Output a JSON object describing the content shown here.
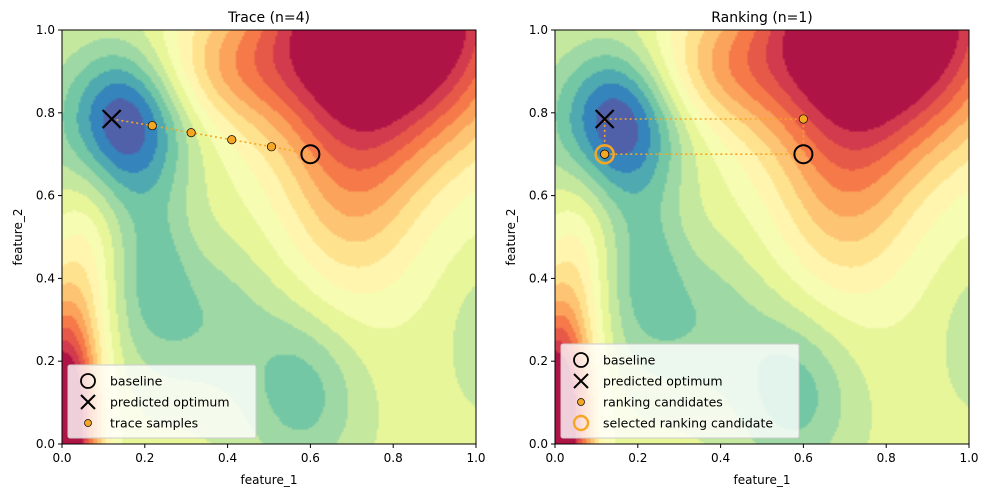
{
  "chart_data": [
    {
      "type": "scatter",
      "title": "Trace (n=4)",
      "xlabel": "feature_1",
      "ylabel": "feature_2",
      "xlim": [
        0,
        1
      ],
      "ylim": [
        0,
        1
      ],
      "xticks": [
        "0.0",
        "0.2",
        "0.4",
        "0.6",
        "0.8",
        "1.0"
      ],
      "yticks": [
        "0.0",
        "0.2",
        "0.4",
        "0.6",
        "0.8",
        "1.0"
      ],
      "background": "filled contour (Spectral colormap)",
      "grid": false,
      "legend_position": "lower-left",
      "baseline": {
        "x": 0.6,
        "y": 0.7
      },
      "optimum": {
        "x": 0.12,
        "y": 0.785
      },
      "trace_path": [
        {
          "x": 0.6,
          "y": 0.7
        },
        {
          "x": 0.506,
          "y": 0.718
        },
        {
          "x": 0.41,
          "y": 0.735
        },
        {
          "x": 0.312,
          "y": 0.752
        },
        {
          "x": 0.218,
          "y": 0.769
        },
        {
          "x": 0.12,
          "y": 0.785
        }
      ],
      "samples": [
        {
          "x": 0.506,
          "y": 0.718
        },
        {
          "x": 0.41,
          "y": 0.735
        },
        {
          "x": 0.312,
          "y": 0.752
        },
        {
          "x": 0.218,
          "y": 0.769
        }
      ],
      "legend": [
        {
          "marker": "circle",
          "label": "baseline"
        },
        {
          "marker": "x",
          "label": "predicted optimum"
        },
        {
          "marker": "dot",
          "label": "trace samples"
        }
      ]
    },
    {
      "type": "scatter",
      "title": "Ranking (n=1)",
      "xlabel": "feature_1",
      "ylabel": "feature_2",
      "xlim": [
        0,
        1
      ],
      "ylim": [
        0,
        1
      ],
      "xticks": [
        "0.0",
        "0.2",
        "0.4",
        "0.6",
        "0.8",
        "1.0"
      ],
      "yticks": [
        "0.0",
        "0.2",
        "0.4",
        "0.6",
        "0.8",
        "1.0"
      ],
      "background": "filled contour (Spectral colormap)",
      "grid": false,
      "legend_position": "lower-left",
      "baseline": {
        "x": 0.6,
        "y": 0.7
      },
      "optimum": {
        "x": 0.12,
        "y": 0.785
      },
      "rectangle": {
        "x0": 0.12,
        "y0": 0.7,
        "x1": 0.6,
        "y1": 0.785
      },
      "samples": [
        {
          "x": 0.6,
          "y": 0.785
        },
        {
          "x": 0.12,
          "y": 0.7
        }
      ],
      "selected": {
        "x": 0.12,
        "y": 0.7
      },
      "legend": [
        {
          "marker": "circle",
          "label": "baseline"
        },
        {
          "marker": "x",
          "label": "predicted optimum"
        },
        {
          "marker": "dot",
          "label": "ranking candidates"
        },
        {
          "marker": "selected",
          "label": "selected ranking candidate"
        }
      ]
    }
  ],
  "colors": {
    "path": "#f5a623",
    "marker_fill": "#f5a623",
    "selected_ring": "#f5a623"
  }
}
